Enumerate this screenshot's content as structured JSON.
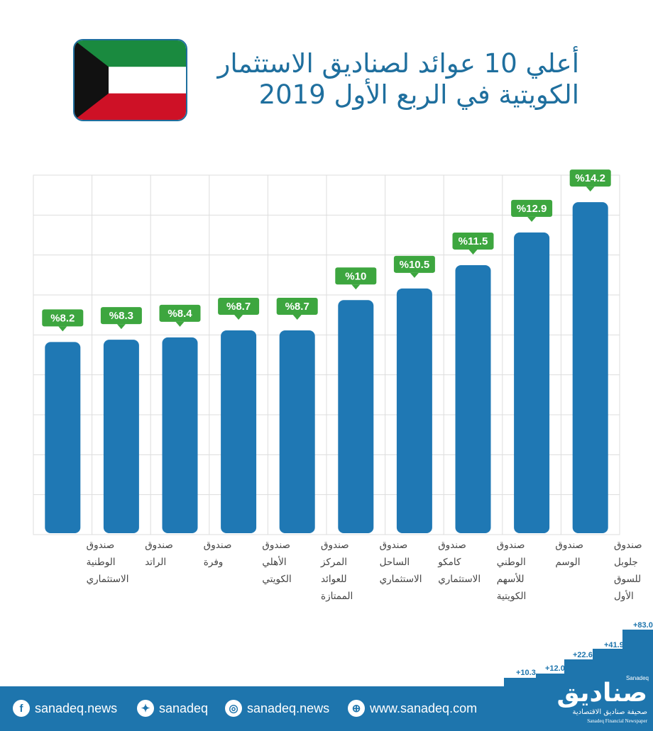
{
  "title": {
    "line1": "أعلي 10 عوائد لصناديق الاستثمار",
    "line2": "الكويتية في الربع الأول 2019"
  },
  "colors": {
    "bar": "#1f78b4",
    "label_bg": "#3da63f",
    "title": "#1f6f9e",
    "footer": "#1e75ad",
    "flag_green": "#1a8a3f",
    "flag_red": "#ce1126",
    "flag_black": "#111111"
  },
  "chart_data": {
    "type": "bar",
    "title": "أعلي 10 عوائد لصناديق الاستثمار الكويتية في الربع الأول 2019",
    "categories": [
      [
        "صندوق",
        "الوطنية",
        "الاستثماري"
      ],
      [
        "صندوق",
        "الراتد"
      ],
      [
        "صندوق",
        "وفرة"
      ],
      [
        "صندوق",
        "الأهلي",
        "الكويتي"
      ],
      [
        "صندوق",
        "المركز",
        "للعوائد",
        "الممتازة"
      ],
      [
        "صندوق",
        "الساحل",
        "الاستثماري"
      ],
      [
        "صندوق",
        "كامكو",
        "الاستثماري"
      ],
      [
        "صندوق",
        "الوطني",
        "للأسهم",
        "الكويتية"
      ],
      [
        "صندوق",
        "الوسم"
      ],
      [
        "صندوق",
        "جلوبل",
        "للسوق",
        "الأول"
      ]
    ],
    "values": [
      8.2,
      8.3,
      8.4,
      8.7,
      8.7,
      10,
      10.5,
      11.5,
      12.9,
      14.2
    ],
    "value_labels": [
      "%8.2",
      "%8.3",
      "%8.4",
      "%8.7",
      "%8.7",
      "%10",
      "%10.5",
      "%11.5",
      "%12.9",
      "%14.2"
    ],
    "ylim": [
      0,
      16
    ],
    "grid": true,
    "xlabel": "",
    "ylabel": ""
  },
  "steps": [
    "+10.3",
    "+12.0",
    "+22.6",
    "+41.9",
    "+83.0"
  ],
  "footer": {
    "facebook": "sanadeq.news",
    "twitter": "sanadeq",
    "instagram": "sanadeq.news",
    "web": "www.sanadeq.com"
  },
  "logo": {
    "small": "Sanadeq",
    "main": "صناديق",
    "sub_ar": "صحيفة صناديق الاقتصادية",
    "sub_en": "Sanadeq Financial Newspaper"
  }
}
